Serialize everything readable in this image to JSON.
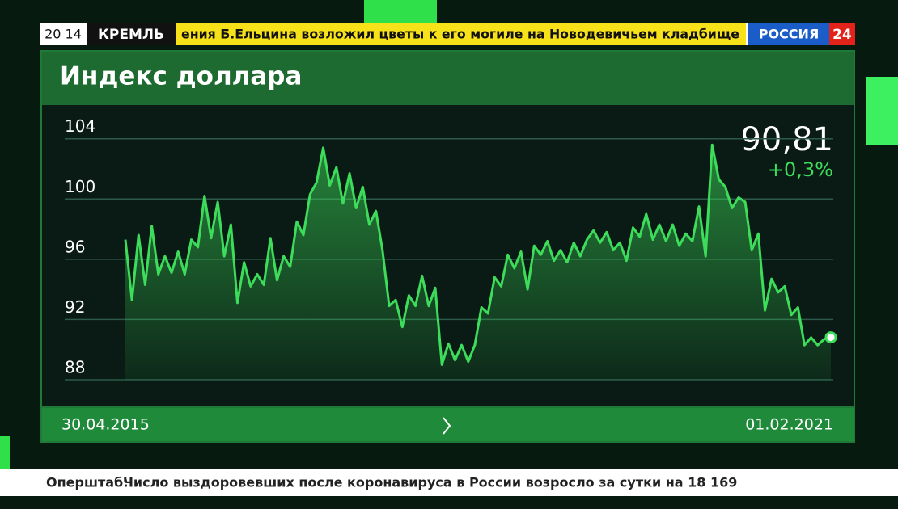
{
  "header": {
    "time": "20 14",
    "tag": "КРЕМЛЬ",
    "headline": "ения Б.Ельцина возложил цветы к его могиле на Новодевичьем кладбище",
    "channel": "РОССИЯ",
    "channel_number": "24"
  },
  "ticker": {
    "source": "Оперштаб:",
    "text": "Число выздоровевших после коронавируса в России возросло за сутки на 18 169"
  },
  "chart_data": {
    "type": "line",
    "title": "Индекс доллара",
    "last_value_label": "90,81",
    "change_label": "+0,3%",
    "color": "#3ddc5a",
    "categories": [
      "30.04.2015",
      null,
      null,
      null,
      null,
      null,
      null,
      null,
      null,
      null,
      null,
      null,
      null,
      null,
      null,
      null,
      null,
      null,
      null,
      null,
      null,
      null,
      null,
      null,
      null,
      null,
      null,
      null,
      null,
      null,
      null,
      null,
      null,
      null,
      null,
      null,
      null,
      null,
      null,
      null,
      null,
      null,
      null,
      null,
      null,
      null,
      null,
      null,
      null,
      null,
      null,
      null,
      null,
      null,
      null,
      null,
      null,
      null,
      null,
      null,
      null,
      null,
      null,
      null,
      null,
      null,
      null,
      null,
      null,
      null,
      null,
      null,
      null,
      null,
      null,
      null,
      null,
      null,
      null,
      null,
      null,
      null,
      null,
      null,
      null,
      null,
      null,
      null,
      null,
      null,
      null,
      null,
      null,
      null,
      null,
      null,
      null,
      null,
      null,
      null,
      null,
      null,
      null,
      null,
      null,
      null,
      null,
      "01.02.2021"
    ],
    "values": [
      97.3,
      93.3,
      97.6,
      94.3,
      98.2,
      95.0,
      96.2,
      95.1,
      96.5,
      95.0,
      97.3,
      96.8,
      100.2,
      97.4,
      99.8,
      96.2,
      98.3,
      93.1,
      95.8,
      94.2,
      95.0,
      94.3,
      97.4,
      94.6,
      96.2,
      95.5,
      98.5,
      97.6,
      100.3,
      101.1,
      103.4,
      100.9,
      102.1,
      99.7,
      101.7,
      99.4,
      100.8,
      98.3,
      99.2,
      96.6,
      92.9,
      93.3,
      91.5,
      93.6,
      92.9,
      94.9,
      92.9,
      94.1,
      89.0,
      90.4,
      89.3,
      90.3,
      89.2,
      90.3,
      92.8,
      92.4,
      94.8,
      94.2,
      96.3,
      95.4,
      96.5,
      94.0,
      96.9,
      96.3,
      97.2,
      95.9,
      96.6,
      95.8,
      97.1,
      96.2,
      97.3,
      97.9,
      97.1,
      97.8,
      96.6,
      97.1,
      95.9,
      98.1,
      97.5,
      99.0,
      97.3,
      98.3,
      97.2,
      98.3,
      96.9,
      97.7,
      97.2,
      99.5,
      96.2,
      103.6,
      101.3,
      100.8,
      99.4,
      100.1,
      99.8,
      96.6,
      97.7,
      92.6,
      94.7,
      93.8,
      94.2,
      92.3,
      92.8,
      90.3,
      90.8,
      90.3,
      90.7,
      90.81
    ],
    "ylim": [
      88,
      105.7
    ],
    "yticks": [
      88,
      92,
      96,
      100,
      104
    ],
    "grid": true
  }
}
